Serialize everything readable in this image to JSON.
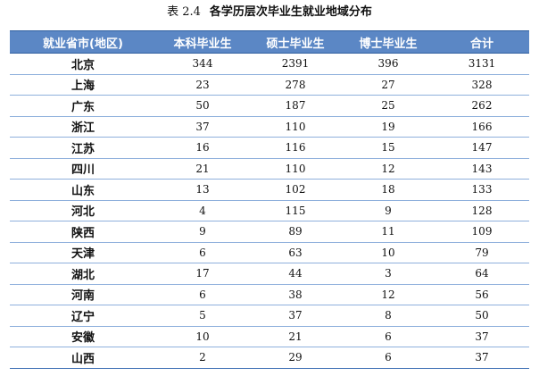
{
  "caption": {
    "number": "表 2.4",
    "title": "各学历层次毕业生就业地域分布"
  },
  "table": {
    "headers": [
      "就业省市(地区)",
      "本科毕业生",
      "硕士毕业生",
      "博士毕业生",
      "合计"
    ],
    "rows": [
      [
        "北京",
        "344",
        "2391",
        "396",
        "3131"
      ],
      [
        "上海",
        "23",
        "278",
        "27",
        "328"
      ],
      [
        "广东",
        "50",
        "187",
        "25",
        "262"
      ],
      [
        "浙江",
        "37",
        "110",
        "19",
        "166"
      ],
      [
        "江苏",
        "16",
        "116",
        "15",
        "147"
      ],
      [
        "四川",
        "21",
        "110",
        "12",
        "143"
      ],
      [
        "山东",
        "13",
        "102",
        "18",
        "133"
      ],
      [
        "河北",
        "4",
        "115",
        "9",
        "128"
      ],
      [
        "陕西",
        "9",
        "89",
        "11",
        "109"
      ],
      [
        "天津",
        "6",
        "63",
        "10",
        "79"
      ],
      [
        "湖北",
        "17",
        "44",
        "3",
        "64"
      ],
      [
        "河南",
        "6",
        "38",
        "12",
        "56"
      ],
      [
        "辽宁",
        "5",
        "37",
        "8",
        "50"
      ],
      [
        "安徽",
        "10",
        "21",
        "6",
        "37"
      ],
      [
        "山西",
        "2",
        "29",
        "6",
        "37"
      ]
    ]
  },
  "colors": {
    "header_background": "#5b87c5",
    "header_text": "#ffffff",
    "row_divider": "#8fb0dc"
  }
}
